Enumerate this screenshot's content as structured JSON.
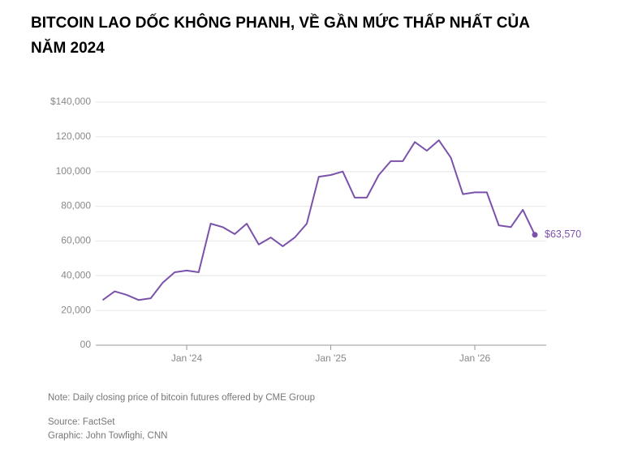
{
  "chart_data": {
    "type": "line",
    "title": "BITCOIN LAO DỐC KHÔNG PHANH, VỀ GẦN MỨC THẤP NHẤT CỦA NĂM 2024",
    "x": [
      "2023-06",
      "2023-07",
      "2023-08",
      "2023-09",
      "2023-10",
      "2023-11",
      "2023-12",
      "2024-01",
      "2024-02",
      "2024-03",
      "2024-04",
      "2024-05",
      "2024-06",
      "2024-07",
      "2024-08",
      "2024-09",
      "2024-10",
      "2024-11",
      "2024-12",
      "2025-01",
      "2025-02",
      "2025-03",
      "2025-04",
      "2025-05",
      "2025-06",
      "2025-07",
      "2025-08",
      "2025-09",
      "2025-10",
      "2025-11",
      "2025-12",
      "2026-01",
      "2026-02",
      "2026-03",
      "2026-04",
      "2026-05",
      "2026-06"
    ],
    "series": [
      {
        "name": "Bitcoin",
        "color": "#7b52ab",
        "values": [
          26000,
          31000,
          29000,
          26000,
          27000,
          36000,
          42000,
          43000,
          42000,
          70000,
          68000,
          64000,
          70000,
          58000,
          62000,
          57000,
          62000,
          70000,
          97000,
          98000,
          100000,
          85000,
          85000,
          98000,
          106000,
          106000,
          117000,
          112000,
          118000,
          108000,
          87000,
          88000,
          88000,
          69000,
          68000,
          78000,
          63570
        ],
        "value_labels": [
          null,
          null,
          null,
          null,
          null,
          null,
          null,
          null,
          null,
          null,
          null,
          null,
          null,
          null,
          null,
          null,
          null,
          null,
          null,
          null,
          null,
          null,
          null,
          null,
          null,
          null,
          null,
          null,
          null,
          null,
          null,
          null,
          null,
          null,
          null,
          null,
          "$63,570"
        ]
      }
    ],
    "xlim": [
      "2023-06",
      "2026-06"
    ],
    "xticks": [
      {
        "value": "2024-01",
        "label": "Jan '24"
      },
      {
        "value": "2025-01",
        "label": "Jan '25"
      },
      {
        "value": "2026-01",
        "label": "Jan '26"
      }
    ],
    "ylim": [
      0,
      140000
    ],
    "yticks": [
      {
        "value": 0,
        "label": "00"
      },
      {
        "value": 20000,
        "label": "20,000"
      },
      {
        "value": 40000,
        "label": "40,000"
      },
      {
        "value": 60000,
        "label": "60,000"
      },
      {
        "value": 80000,
        "label": "80,000"
      },
      {
        "value": 100000,
        "label": "100,000"
      },
      {
        "value": 120000,
        "label": "120,000"
      },
      {
        "value": 140000,
        "label": "$140,000"
      }
    ],
    "grid": true,
    "note": "Note: Daily closing price of bitcoin futures offered by CME Group",
    "source": "Source: FactSet",
    "credit": "Graphic: John Towfighi, CNN"
  }
}
